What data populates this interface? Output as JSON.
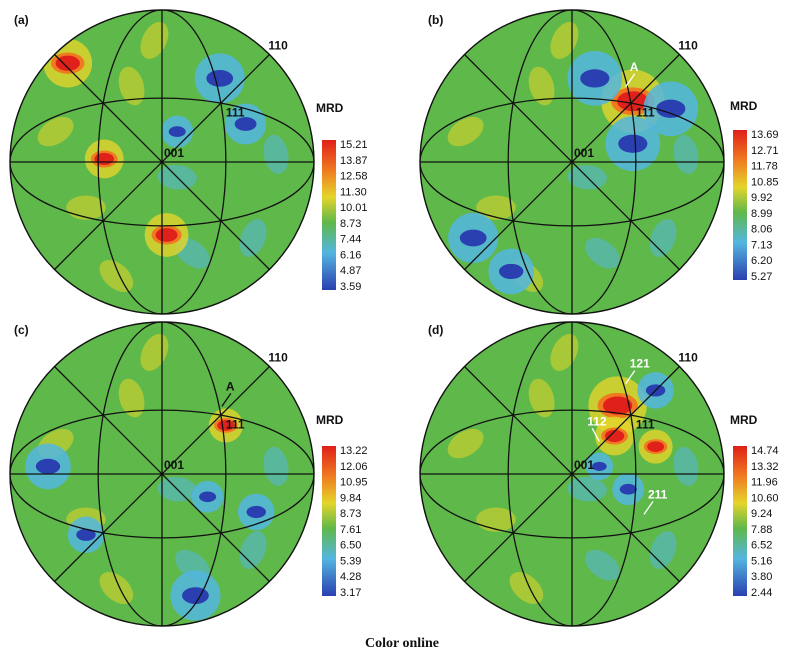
{
  "figure": {
    "caption": "Color online",
    "panels": [
      {
        "label": "(a)",
        "poles": {
          "center": "001",
          "p111": "111",
          "p110": "110"
        },
        "extra_labels": [],
        "colorbar": {
          "title": "MRD",
          "ticks": [
            "15.21",
            "13.87",
            "12.58",
            "11.30",
            "10.01",
            "8.73",
            "7.44",
            "6.16",
            "4.87",
            "3.59"
          ]
        },
        "hotspots": [
          {
            "u": -0.62,
            "v": -0.65,
            "color": "#e0201a",
            "r": 0.1
          },
          {
            "u": -0.38,
            "v": -0.02,
            "color": "#e0201a",
            "r": 0.08
          },
          {
            "u": 0.03,
            "v": 0.48,
            "color": "#e0201a",
            "r": 0.09
          },
          {
            "u": 0.38,
            "v": -0.55,
            "color": "#2a3fb0",
            "r": 0.11
          },
          {
            "u": 0.55,
            "v": -0.25,
            "color": "#2a3fb0",
            "r": 0.09
          },
          {
            "u": 0.1,
            "v": -0.2,
            "color": "#2a3fb0",
            "r": 0.07
          }
        ]
      },
      {
        "label": "(b)",
        "poles": {
          "center": "001",
          "p111": "111",
          "p110": "110"
        },
        "extra_labels": [
          {
            "text": "A",
            "u": 0.38,
            "v": -0.6
          }
        ],
        "colorbar": {
          "title": "MRD",
          "ticks": [
            "13.69",
            "12.71",
            "11.78",
            "10.85",
            "9.92",
            "8.99",
            "8.06",
            "7.13",
            "6.20",
            "5.27"
          ]
        },
        "hotspots": [
          {
            "u": 0.4,
            "v": -0.4,
            "color": "#e0201a",
            "r": 0.13
          },
          {
            "u": 0.15,
            "v": -0.55,
            "color": "#2a3fb0",
            "r": 0.12
          },
          {
            "u": 0.65,
            "v": -0.35,
            "color": "#2a3fb0",
            "r": 0.12
          },
          {
            "u": 0.4,
            "v": -0.12,
            "color": "#2a3fb0",
            "r": 0.12
          },
          {
            "u": -0.65,
            "v": 0.5,
            "color": "#2a3fb0",
            "r": 0.11
          },
          {
            "u": -0.4,
            "v": 0.72,
            "color": "#2a3fb0",
            "r": 0.1
          }
        ]
      },
      {
        "label": "(c)",
        "poles": {
          "center": "001",
          "p111": "111",
          "p110": "110"
        },
        "extra_labels": [
          {
            "text": "A",
            "u": 0.42,
            "v": -0.55
          }
        ],
        "colorbar": {
          "title": "MRD",
          "ticks": [
            "13.22",
            "12.06",
            "10.95",
            "9.84",
            "8.73",
            "7.61",
            "6.50",
            "5.39",
            "4.28",
            "3.17"
          ]
        },
        "hotspots": [
          {
            "u": 0.42,
            "v": -0.32,
            "color": "#e0201a",
            "r": 0.07
          },
          {
            "u": -0.75,
            "v": -0.05,
            "color": "#2a3fb0",
            "r": 0.1
          },
          {
            "u": 0.22,
            "v": 0.8,
            "color": "#2a3fb0",
            "r": 0.11
          },
          {
            "u": -0.5,
            "v": 0.4,
            "color": "#2a3fb0",
            "r": 0.08
          },
          {
            "u": 0.62,
            "v": 0.25,
            "color": "#2a3fb0",
            "r": 0.08
          },
          {
            "u": 0.3,
            "v": 0.15,
            "color": "#2a3fb0",
            "r": 0.07
          }
        ]
      },
      {
        "label": "(d)",
        "poles": {
          "center": "001",
          "p111": "111",
          "p110": "110"
        },
        "extra_labels": [
          {
            "text": "121",
            "u": 0.38,
            "v": -0.7
          },
          {
            "text": "112",
            "u": 0.1,
            "v": -0.32
          },
          {
            "text": "211",
            "u": 0.5,
            "v": 0.16
          }
        ],
        "colorbar": {
          "title": "MRD",
          "ticks": [
            "14.74",
            "13.32",
            "11.96",
            "10.60",
            "9.24",
            "7.88",
            "6.52",
            "5.16",
            "3.80",
            "2.44"
          ]
        },
        "hotspots": [
          {
            "u": 0.3,
            "v": -0.45,
            "color": "#e0201a",
            "r": 0.12
          },
          {
            "u": 0.28,
            "v": -0.25,
            "color": "#e0201a",
            "r": 0.08
          },
          {
            "u": 0.55,
            "v": -0.18,
            "color": "#e0201a",
            "r": 0.07
          },
          {
            "u": 0.55,
            "v": -0.55,
            "color": "#2a3fb0",
            "r": 0.08
          },
          {
            "u": 0.37,
            "v": 0.1,
            "color": "#2a3fb0",
            "r": 0.07
          },
          {
            "u": 0.18,
            "v": -0.05,
            "color": "#2a3fb0",
            "r": 0.06
          }
        ]
      }
    ],
    "colors": {
      "base": "#5fb84a",
      "light_blue": "#54b6e0",
      "red": "#e0201a",
      "blue": "#2a3fb0",
      "yellow": "#e4d52a"
    }
  }
}
